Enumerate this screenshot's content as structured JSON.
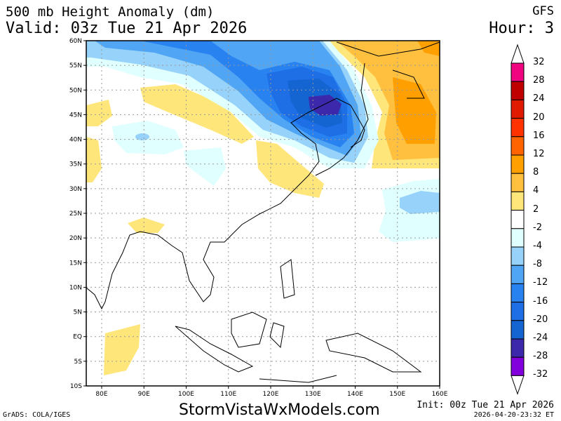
{
  "header": {
    "title": "500 mb Height Anomaly (dm)",
    "valid": "Valid: 03z Tue 21 Apr 2026",
    "model": "GFS",
    "hour": "Hour: 3"
  },
  "footer": {
    "brand": "StormVistaWxModels.com",
    "grads": "GrADS: COLA/IGES",
    "init": "Init: 00z Tue 21 Apr 2026",
    "stamp": "2026-04-20-23:32 ET"
  },
  "axes": {
    "lat_labels": [
      "60N",
      "55N",
      "50N",
      "45N",
      "40N",
      "35N",
      "30N",
      "25N",
      "20N",
      "15N",
      "10N",
      "5N",
      "EQ",
      "5S",
      "10S"
    ],
    "lon_labels": [
      "80E",
      "90E",
      "100E",
      "110E",
      "120E",
      "130E",
      "140E",
      "150E",
      "160E"
    ]
  },
  "colorbar": {
    "labels": [
      "32",
      "28",
      "24",
      "20",
      "16",
      "12",
      "8",
      "4",
      "2",
      "-2",
      "-4",
      "-8",
      "-12",
      "-16",
      "-20",
      "-24",
      "-28",
      "-32"
    ],
    "colors": [
      "#f0047f",
      "#c00000",
      "#e01a00",
      "#ff3200",
      "#ff6400",
      "#ffa000",
      "#ffc040",
      "#ffe67a",
      "#ffffff",
      "#e0ffff",
      "#96d2fa",
      "#50a5f5",
      "#2882f0",
      "#1e6ee6",
      "#1464d2",
      "#3c28aa",
      "#8200dc"
    ]
  }
}
